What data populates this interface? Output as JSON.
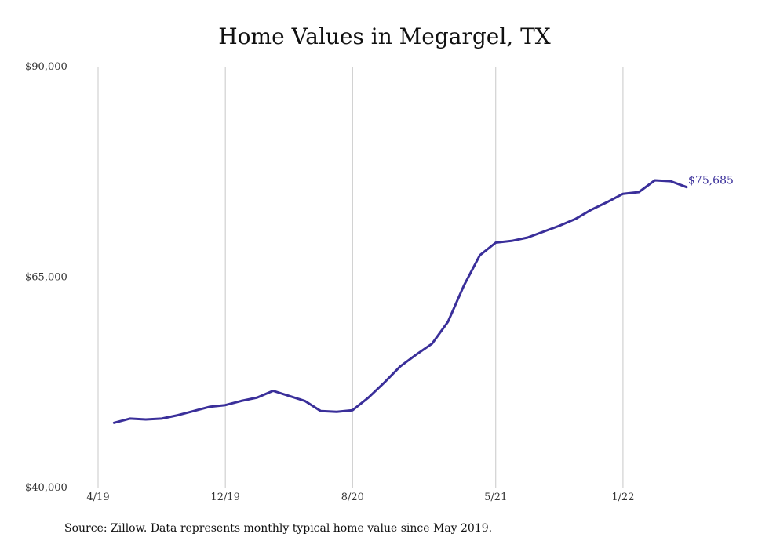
{
  "source_note": "Source: Zillow. Data represents monthly typical home value since May 2019.",
  "chart_data": {
    "type": "line",
    "title": "Home Values in Megargel, TX",
    "xlabel": "",
    "ylabel": "",
    "ylim": [
      40000,
      90000
    ],
    "y_ticks": [
      {
        "value": 40000,
        "label": "$40,000"
      },
      {
        "value": 65000,
        "label": "$65,000"
      },
      {
        "value": 90000,
        "label": "$90,000"
      }
    ],
    "x_ticks": [
      {
        "value": "2019-04",
        "label": "4/19"
      },
      {
        "value": "2019-12",
        "label": "12/19"
      },
      {
        "value": "2020-08",
        "label": "8/20"
      },
      {
        "value": "2021-05",
        "label": "5/21"
      },
      {
        "value": "2022-01",
        "label": "1/22"
      }
    ],
    "grid": "vertical",
    "line_color": "#3a2f9a",
    "series": [
      {
        "x": [
          "2019-05",
          "2019-06",
          "2019-07",
          "2019-08",
          "2019-09",
          "2019-10",
          "2019-11",
          "2019-12",
          "2020-01",
          "2020-02",
          "2020-03",
          "2020-04",
          "2020-05",
          "2020-06",
          "2020-07",
          "2020-08",
          "2020-09",
          "2020-10",
          "2020-11",
          "2020-12",
          "2021-01",
          "2021-02",
          "2021-03",
          "2021-04",
          "2021-05",
          "2021-06",
          "2021-07",
          "2021-08",
          "2021-09",
          "2021-10",
          "2021-11",
          "2021-12",
          "2022-01",
          "2022-02",
          "2022-03",
          "2022-04",
          "2022-05"
        ],
        "values": [
          47700,
          48200,
          48100,
          48200,
          48600,
          49100,
          49600,
          49800,
          50300,
          50700,
          51500,
          50900,
          50300,
          49100,
          49000,
          49200,
          50700,
          52500,
          54400,
          55800,
          57100,
          59700,
          64000,
          67600,
          69100,
          69300,
          69700,
          70400,
          71100,
          71900,
          73000,
          73900,
          74900,
          75100,
          76500,
          76400,
          75685
        ]
      }
    ],
    "annotations": [
      {
        "x": "2022-05",
        "value": 75685,
        "label": "$75,685"
      }
    ]
  }
}
